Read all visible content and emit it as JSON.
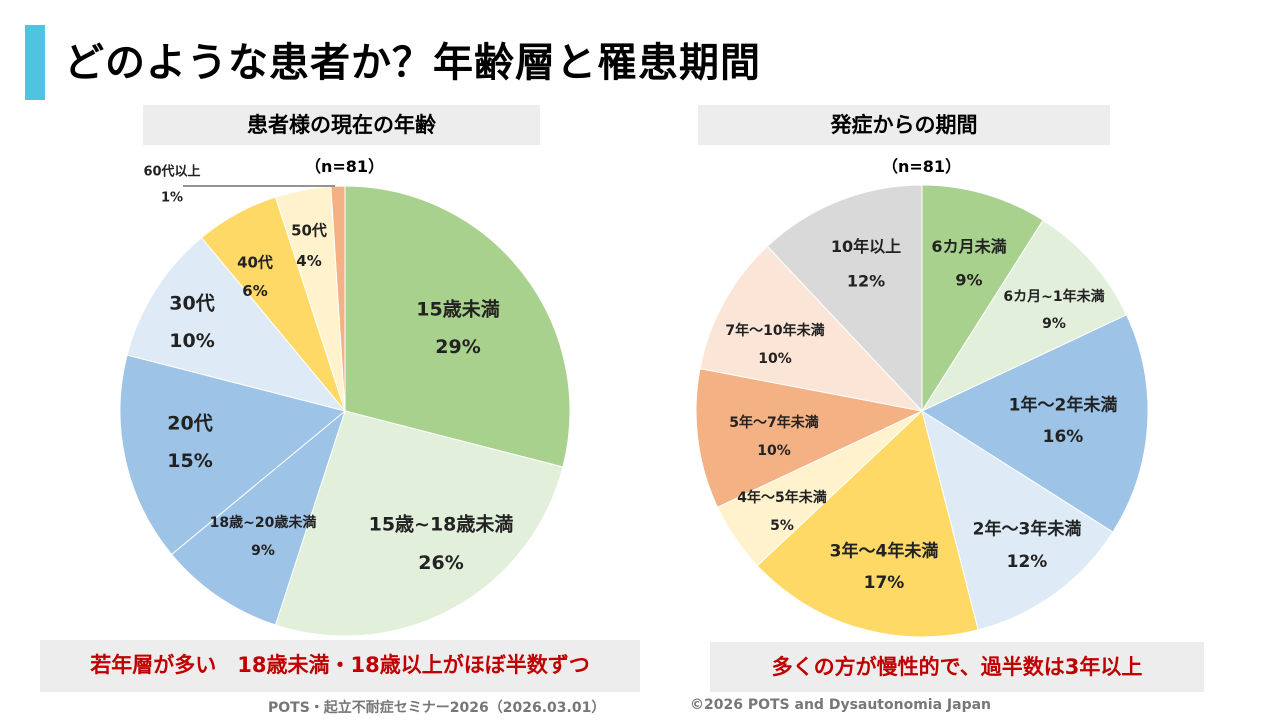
{
  "title": "どのような患者か？年齢層と罹患期間",
  "chart_data": [
    {
      "type": "pie",
      "title": "患者様の現在の年齢",
      "n_label": "（n=81）",
      "slices": [
        {
          "label": "15歳未満",
          "value": 29,
          "pct": "29%",
          "color": "#A9D18E"
        },
        {
          "label": "15歳~18歳未満",
          "value": 26,
          "pct": "26%",
          "color": "#E2EFDA"
        },
        {
          "label": "18歳~20歳未満",
          "value": 9,
          "pct": "9%",
          "color": "#9DC3E6"
        },
        {
          "label": "20代",
          "value": 15,
          "pct": "15%",
          "color": "#9DC3E6"
        },
        {
          "label": "30代",
          "value": 10,
          "pct": "10%",
          "color": "#DEEBF7"
        },
        {
          "label": "40代",
          "value": 6,
          "pct": "6%",
          "color": "#FFD966"
        },
        {
          "label": "50代",
          "value": 4,
          "pct": "4%",
          "color": "#FFF2CC"
        },
        {
          "label": "60代以上",
          "value": 1,
          "pct": "1%",
          "color": "#F4B183"
        }
      ],
      "note": "若年層が多い　18歳未満・18歳以上がほぼ半数ずつ"
    },
    {
      "type": "pie",
      "title": "発症からの期間",
      "n_label": "（n=81）",
      "slices": [
        {
          "label": "6カ月未満",
          "value": 9,
          "pct": "9%",
          "color": "#A9D18E"
        },
        {
          "label": "6カ月~1年未満",
          "value": 9,
          "pct": "9%",
          "color": "#E2EFDA"
        },
        {
          "label": "1年～2年未満",
          "value": 16,
          "pct": "16%",
          "color": "#9DC3E6"
        },
        {
          "label": "2年～3年未満",
          "value": 12,
          "pct": "12%",
          "color": "#DEEBF7"
        },
        {
          "label": "3年～4年未満",
          "value": 17,
          "pct": "17%",
          "color": "#FFD966"
        },
        {
          "label": "4年～5年未満",
          "value": 5,
          "pct": "5%",
          "color": "#FFF2CC"
        },
        {
          "label": "5年～7年未満",
          "value": 10,
          "pct": "10%",
          "color": "#F4B183"
        },
        {
          "label": "7年～10年未満",
          "value": 10,
          "pct": "10%",
          "color": "#FBE5D6"
        },
        {
          "label": "10年以上",
          "value": 12,
          "pct": "12%",
          "color": "#D9D9D9"
        }
      ],
      "note": "多くの方が慢性的で、過半数は3年以上"
    }
  ],
  "footer": {
    "left": "POTS・起立不耐症セミナー2026（2026.03.01）",
    "right": "©2026 POTS and Dysautonomia Japan"
  }
}
